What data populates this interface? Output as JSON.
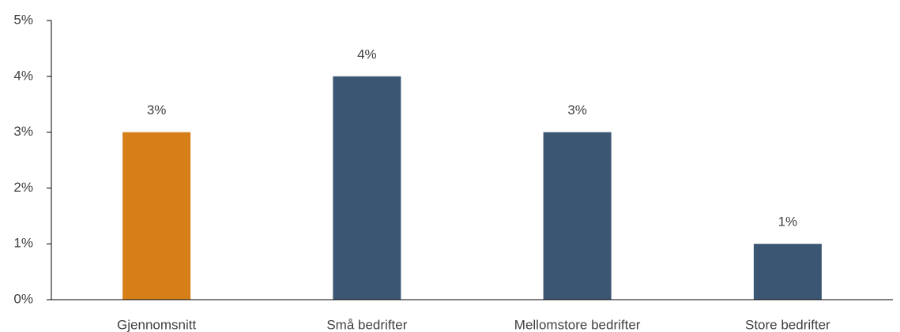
{
  "chart_data": {
    "type": "bar",
    "categories": [
      "Gjennomsnitt",
      "Små bedrifter",
      "Mellomstore bedrifter",
      "Store bedrifter"
    ],
    "values": [
      3,
      4,
      3,
      1
    ],
    "value_labels": [
      "3%",
      "4%",
      "3%",
      "1%"
    ],
    "colors": [
      "#d67f18",
      "#3a5673",
      "#3a5673",
      "#3a5673"
    ],
    "ylim": [
      0,
      5
    ],
    "yticks": [
      {
        "value": 0,
        "label": "0%"
      },
      {
        "value": 1,
        "label": "1%"
      },
      {
        "value": 2,
        "label": "2%"
      },
      {
        "value": 3,
        "label": "3%"
      },
      {
        "value": 4,
        "label": "4%"
      },
      {
        "value": 5,
        "label": "5%"
      }
    ],
    "grid": false
  }
}
